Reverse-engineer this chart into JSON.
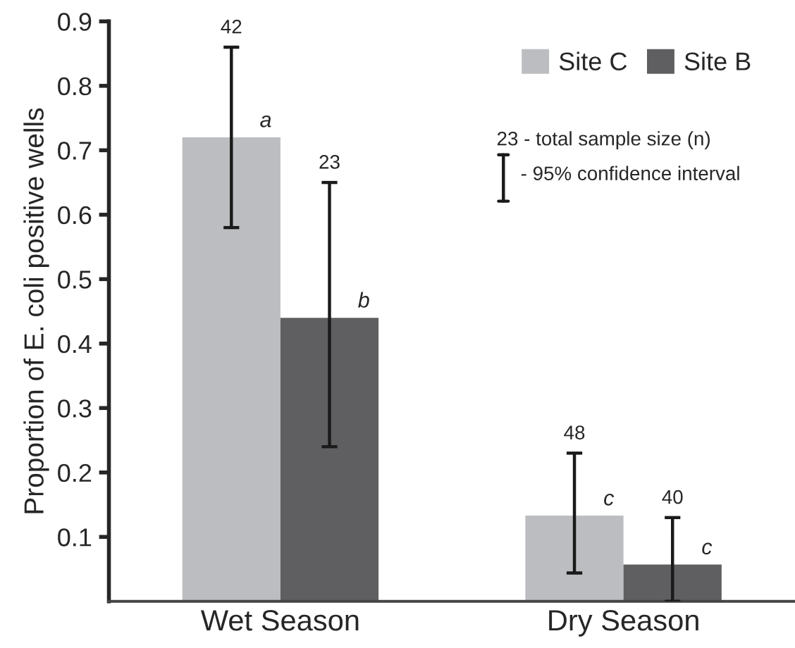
{
  "chart_data": {
    "type": "bar",
    "ylabel": "Proportion of E. coli positive wells",
    "categories": [
      "Wet Season",
      "Dry Season"
    ],
    "series": [
      {
        "name": "Site C",
        "color": "#bcbdc0",
        "values": [
          0.72,
          0.133
        ],
        "errors": [
          [
            0.58,
            0.86
          ],
          [
            0.044,
            0.23
          ]
        ]
      },
      {
        "name": "Site B",
        "color": "#5f5f61",
        "values": [
          0.44,
          0.057
        ],
        "errors": [
          [
            0.24,
            0.65
          ],
          [
            0.0,
            0.13
          ]
        ]
      }
    ],
    "ylim": [
      0,
      0.9
    ],
    "yticks": [
      0.1,
      0.2,
      0.3,
      0.4,
      0.5,
      0.6,
      0.7,
      0.8,
      0.9
    ],
    "grid": false,
    "legend": "top right",
    "annotations": [
      "42",
      "23",
      "48",
      "40",
      "a",
      "b",
      "c",
      "c",
      "23 - total sample size (n)",
      "- 95% confidence interval"
    ]
  }
}
